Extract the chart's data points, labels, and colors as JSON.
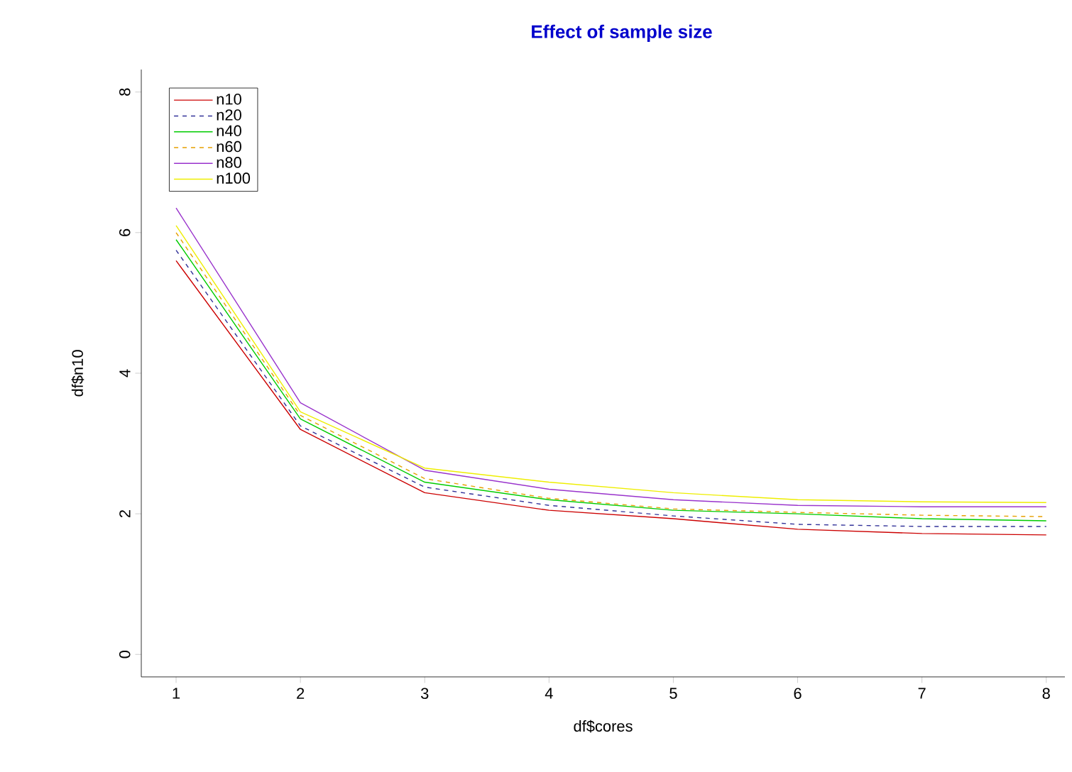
{
  "chart_data": {
    "type": "line",
    "title": "Effect of sample size",
    "xlabel": "df$cores",
    "ylabel": "df$n10",
    "x": [
      1,
      2,
      3,
      4,
      5,
      6,
      7,
      8
    ],
    "series": [
      {
        "name": "n10",
        "color": "#cc0000",
        "line_style": "solid",
        "values": [
          5.6,
          3.2,
          2.3,
          2.05,
          1.93,
          1.78,
          1.72,
          1.7
        ]
      },
      {
        "name": "n20",
        "color": "#333399",
        "line_style": "dashed",
        "values": [
          5.75,
          3.25,
          2.38,
          2.12,
          1.97,
          1.85,
          1.82,
          1.82
        ]
      },
      {
        "name": "n40",
        "color": "#00cc00",
        "line_style": "solid",
        "values": [
          5.9,
          3.35,
          2.45,
          2.2,
          2.05,
          2.0,
          1.93,
          1.9
        ]
      },
      {
        "name": "n60",
        "color": "#e6a000",
        "line_style": "dashed",
        "values": [
          6.0,
          3.4,
          2.5,
          2.22,
          2.07,
          2.02,
          1.98,
          1.96
        ]
      },
      {
        "name": "n80",
        "color": "#9933cc",
        "line_style": "solid",
        "values": [
          6.35,
          3.58,
          2.62,
          2.35,
          2.2,
          2.12,
          2.1,
          2.1
        ]
      },
      {
        "name": "n100",
        "color": "#eeee00",
        "line_style": "solid",
        "values": [
          6.1,
          3.45,
          2.65,
          2.45,
          2.3,
          2.2,
          2.17,
          2.16
        ]
      }
    ],
    "xlim": [
      0.72,
      8.15
    ],
    "ylim": [
      -0.32,
      8.32
    ],
    "xticks": [
      1,
      2,
      3,
      4,
      5,
      6,
      7,
      8
    ],
    "yticks": [
      0,
      2,
      4,
      6,
      8
    ],
    "grid": false,
    "legend": "top left"
  }
}
